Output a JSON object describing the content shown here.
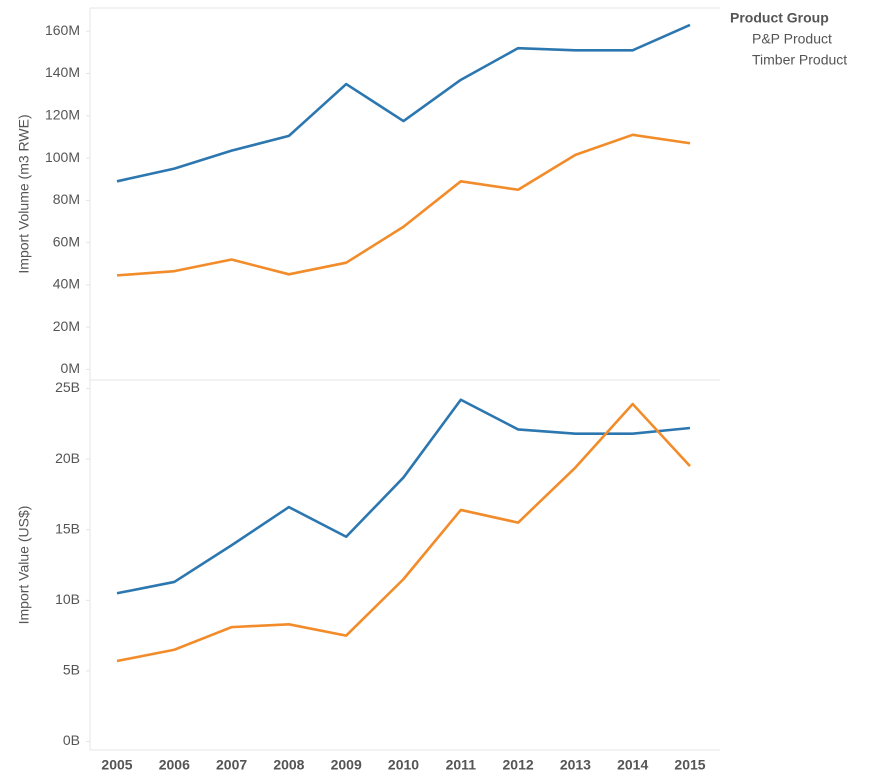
{
  "chart_data": [
    {
      "type": "line",
      "y_label": "Import Volume (m3 RWE)",
      "legend_title": "Product Group",
      "legend_position": "top-right",
      "categories": [
        "2005",
        "2006",
        "2007",
        "2008",
        "2009",
        "2010",
        "2011",
        "2012",
        "2013",
        "2014",
        "2015"
      ],
      "series": [
        {
          "name": "P&P Product",
          "color": "#2c77b0",
          "values": [
            89,
            95,
            103.5,
            110.5,
            135,
            117.5,
            137,
            152,
            151,
            151,
            163
          ]
        },
        {
          "name": "Timber Product",
          "color": "#f28c2a",
          "values": [
            44.5,
            46.5,
            52,
            45,
            50.5,
            67.5,
            89,
            85,
            101.5,
            111,
            107
          ]
        }
      ],
      "ylim": [
        -5,
        171
      ],
      "yticks": [
        {
          "value": 0,
          "label": "0M"
        },
        {
          "value": 20,
          "label": "20M"
        },
        {
          "value": 40,
          "label": "40M"
        },
        {
          "value": 60,
          "label": "60M"
        },
        {
          "value": 80,
          "label": "80M"
        },
        {
          "value": 100,
          "label": "100M"
        },
        {
          "value": 120,
          "label": "120M"
        },
        {
          "value": 140,
          "label": "140M"
        },
        {
          "value": 160,
          "label": "160M"
        }
      ],
      "grid": false
    },
    {
      "type": "line",
      "y_label": "Import Value (US$)",
      "categories": [
        "2005",
        "2006",
        "2007",
        "2008",
        "2009",
        "2010",
        "2011",
        "2012",
        "2013",
        "2014",
        "2015"
      ],
      "series": [
        {
          "name": "P&P Product",
          "color": "#2c77b0",
          "values": [
            10.5,
            11.3,
            13.9,
            16.6,
            14.5,
            18.7,
            24.2,
            22.1,
            21.8,
            21.8,
            22.2
          ]
        },
        {
          "name": "Timber Product",
          "color": "#f28c2a",
          "values": [
            5.7,
            6.5,
            8.1,
            8.3,
            7.5,
            11.5,
            16.4,
            15.5,
            19.4,
            23.9,
            19.5
          ]
        }
      ],
      "ylim": [
        -0.6,
        25.6
      ],
      "yticks": [
        {
          "value": 0,
          "label": "0B"
        },
        {
          "value": 5,
          "label": "5B"
        },
        {
          "value": 10,
          "label": "10B"
        },
        {
          "value": 15,
          "label": "15B"
        },
        {
          "value": 20,
          "label": "20B"
        },
        {
          "value": 25,
          "label": "25B"
        }
      ],
      "grid": false
    }
  ]
}
